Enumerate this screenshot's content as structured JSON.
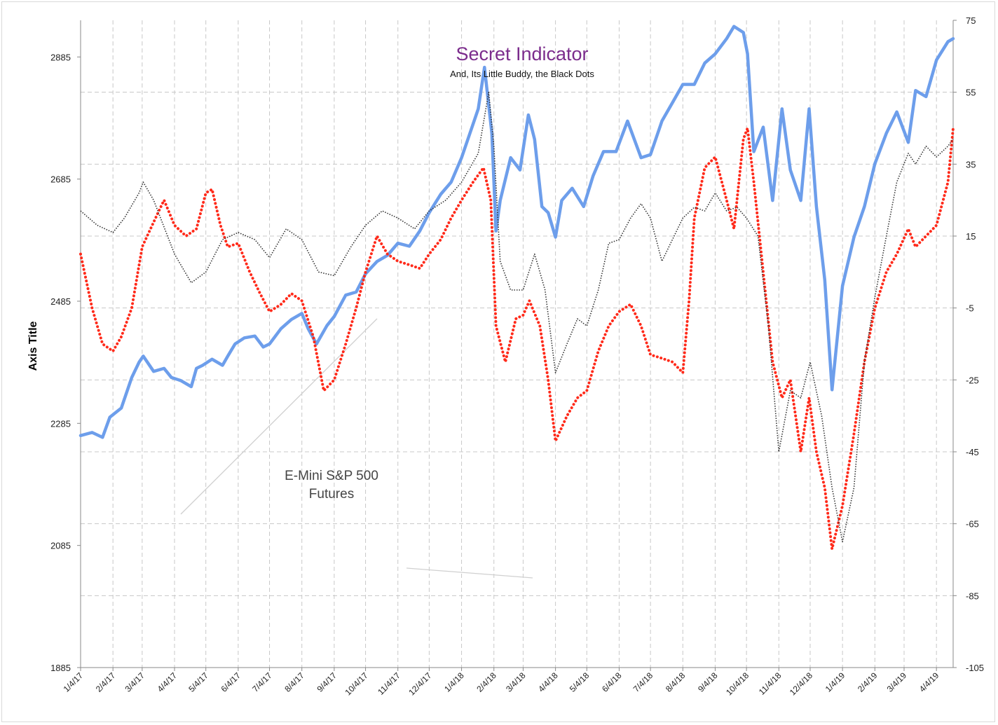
{
  "chart_data": {
    "type": "line",
    "title": "Secret Indicator",
    "subtitle": "And, Its Little Buddy, the Black Dots",
    "ylabel": "Axis Title",
    "xlabel": "",
    "annotation": {
      "line1": "E-Mini S&P 500",
      "line2": "Futures"
    },
    "x_tick_labels": [
      "1/4/17",
      "2/4/17",
      "3/4/17",
      "4/4/17",
      "5/4/17",
      "6/4/17",
      "7/4/17",
      "8/4/17",
      "9/4/17",
      "10/4/17",
      "11/4/17",
      "12/4/17",
      "1/4/18",
      "2/4/18",
      "3/4/18",
      "4/4/18",
      "5/4/18",
      "6/4/18",
      "7/4/18",
      "8/4/18",
      "9/4/18",
      "10/4/18",
      "11/4/18",
      "12/4/18",
      "1/4/19",
      "2/4/19",
      "3/4/19",
      "4/4/19"
    ],
    "x_range": [
      "1/4/17",
      "4/20/19"
    ],
    "y_left": {
      "ticks": [
        1885,
        2085,
        2285,
        2485,
        2685,
        2885
      ],
      "range": [
        1885,
        2945
      ]
    },
    "y_right": {
      "ticks": [
        -105,
        -85,
        -65,
        -45,
        -25,
        -5,
        15,
        35,
        55,
        75
      ],
      "range": [
        -105,
        75
      ]
    },
    "grid": true,
    "colors": {
      "es_futures": "#6d9eeb",
      "secret_indicator": "#ff2a1a",
      "black_dots": "#333333",
      "title": "#7b2c8c",
      "grid": "#c8c8c8"
    },
    "series": [
      {
        "axis": "left",
        "style": "solid-thick",
        "points": [
          [
            "1/4/17",
            2265
          ],
          [
            "1/15/17",
            2270
          ],
          [
            "1/25/17",
            2262
          ],
          [
            "2/1/17",
            2295
          ],
          [
            "2/12/17",
            2310
          ],
          [
            "2/22/17",
            2360
          ],
          [
            "3/1/17",
            2385
          ],
          [
            "3/5/17",
            2395
          ],
          [
            "3/15/17",
            2370
          ],
          [
            "3/25/17",
            2375
          ],
          [
            "4/1/17",
            2360
          ],
          [
            "4/10/17",
            2355
          ],
          [
            "4/20/17",
            2345
          ],
          [
            "4/25/17",
            2375
          ],
          [
            "5/1/17",
            2380
          ],
          [
            "5/10/17",
            2390
          ],
          [
            "5/20/17",
            2380
          ],
          [
            "5/25/17",
            2395
          ],
          [
            "6/1/17",
            2415
          ],
          [
            "6/10/17",
            2425
          ],
          [
            "6/20/17",
            2428
          ],
          [
            "6/28/17",
            2410
          ],
          [
            "7/4/17",
            2415
          ],
          [
            "7/15/17",
            2440
          ],
          [
            "7/25/17",
            2455
          ],
          [
            "8/4/17",
            2465
          ],
          [
            "8/10/17",
            2440
          ],
          [
            "8/18/17",
            2415
          ],
          [
            "8/28/17",
            2445
          ],
          [
            "9/4/17",
            2460
          ],
          [
            "9/15/17",
            2495
          ],
          [
            "9/25/17",
            2500
          ],
          [
            "10/4/17",
            2530
          ],
          [
            "10/15/17",
            2550
          ],
          [
            "10/25/17",
            2560
          ],
          [
            "11/4/17",
            2580
          ],
          [
            "11/15/17",
            2575
          ],
          [
            "11/25/17",
            2600
          ],
          [
            "12/4/17",
            2630
          ],
          [
            "12/15/17",
            2660
          ],
          [
            "12/25/17",
            2680
          ],
          [
            "1/4/18",
            2720
          ],
          [
            "1/12/18",
            2760
          ],
          [
            "1/20/18",
            2800
          ],
          [
            "1/26/18",
            2868
          ],
          [
            "2/2/18",
            2760
          ],
          [
            "2/6/18",
            2600
          ],
          [
            "2/10/18",
            2650
          ],
          [
            "2/20/18",
            2720
          ],
          [
            "3/1/18",
            2700
          ],
          [
            "3/9/18",
            2790
          ],
          [
            "3/15/18",
            2750
          ],
          [
            "3/22/18",
            2640
          ],
          [
            "3/28/18",
            2630
          ],
          [
            "4/4/18",
            2590
          ],
          [
            "4/10/18",
            2650
          ],
          [
            "4/20/18",
            2670
          ],
          [
            "5/1/18",
            2640
          ],
          [
            "5/10/18",
            2690
          ],
          [
            "5/20/18",
            2730
          ],
          [
            "6/1/18",
            2730
          ],
          [
            "6/12/18",
            2780
          ],
          [
            "6/25/18",
            2720
          ],
          [
            "7/4/18",
            2725
          ],
          [
            "7/15/18",
            2780
          ],
          [
            "7/25/18",
            2810
          ],
          [
            "8/4/18",
            2840
          ],
          [
            "8/15/18",
            2840
          ],
          [
            "8/25/18",
            2875
          ],
          [
            "9/4/18",
            2890
          ],
          [
            "9/15/18",
            2915
          ],
          [
            "9/22/18",
            2935
          ],
          [
            "10/1/18",
            2925
          ],
          [
            "10/5/18",
            2890
          ],
          [
            "10/11/18",
            2730
          ],
          [
            "10/20/18",
            2770
          ],
          [
            "10/29/18",
            2650
          ],
          [
            "11/7/18",
            2800
          ],
          [
            "11/15/18",
            2700
          ],
          [
            "11/25/18",
            2650
          ],
          [
            "12/3/18",
            2800
          ],
          [
            "12/10/18",
            2640
          ],
          [
            "12/18/18",
            2520
          ],
          [
            "12/25/18",
            2340
          ],
          [
            "1/4/19",
            2510
          ],
          [
            "1/15/19",
            2590
          ],
          [
            "1/25/19",
            2640
          ],
          [
            "2/4/19",
            2710
          ],
          [
            "2/15/19",
            2760
          ],
          [
            "2/25/19",
            2795
          ],
          [
            "3/8/19",
            2745
          ],
          [
            "3/15/19",
            2830
          ],
          [
            "3/25/19",
            2820
          ],
          [
            "4/4/19",
            2880
          ],
          [
            "4/15/19",
            2910
          ],
          [
            "4/20/19",
            2915
          ]
        ]
      },
      {
        "axis": "right",
        "style": "dots-red",
        "points": [
          [
            "1/4/17",
            10
          ],
          [
            "1/15/17",
            -5
          ],
          [
            "1/25/17",
            -15
          ],
          [
            "2/4/17",
            -17
          ],
          [
            "2/12/17",
            -13
          ],
          [
            "2/22/17",
            -5
          ],
          [
            "3/4/17",
            12
          ],
          [
            "3/12/17",
            17
          ],
          [
            "3/20/17",
            22
          ],
          [
            "3/25/17",
            25
          ],
          [
            "4/4/17",
            18
          ],
          [
            "4/15/17",
            15
          ],
          [
            "4/25/17",
            17
          ],
          [
            "5/4/17",
            27
          ],
          [
            "5/10/17",
            28
          ],
          [
            "5/18/17",
            18
          ],
          [
            "5/25/17",
            12
          ],
          [
            "6/4/17",
            13
          ],
          [
            "6/15/17",
            5
          ],
          [
            "6/25/17",
            -1
          ],
          [
            "7/4/17",
            -6
          ],
          [
            "7/15/17",
            -4
          ],
          [
            "7/25/17",
            -1
          ],
          [
            "8/4/17",
            -3
          ],
          [
            "8/15/17",
            -13
          ],
          [
            "8/25/17",
            -28
          ],
          [
            "9/4/17",
            -25
          ],
          [
            "9/15/17",
            -15
          ],
          [
            "9/25/17",
            -5
          ],
          [
            "10/4/17",
            5
          ],
          [
            "10/15/17",
            15
          ],
          [
            "10/25/17",
            10
          ],
          [
            "11/4/17",
            8
          ],
          [
            "11/15/17",
            7
          ],
          [
            "11/25/17",
            6
          ],
          [
            "12/4/17",
            10
          ],
          [
            "12/15/17",
            14
          ],
          [
            "12/25/17",
            20
          ],
          [
            "1/4/18",
            25
          ],
          [
            "1/15/18",
            30
          ],
          [
            "1/25/18",
            34
          ],
          [
            "2/1/18",
            25
          ],
          [
            "2/6/18",
            -10
          ],
          [
            "2/15/18",
            -20
          ],
          [
            "2/25/18",
            -8
          ],
          [
            "3/4/18",
            -7
          ],
          [
            "3/10/18",
            -3
          ],
          [
            "3/20/18",
            -10
          ],
          [
            "3/28/18",
            -25
          ],
          [
            "4/4/18",
            -42
          ],
          [
            "4/15/18",
            -35
          ],
          [
            "4/25/18",
            -30
          ],
          [
            "5/4/18",
            -28
          ],
          [
            "5/15/18",
            -17
          ],
          [
            "5/25/18",
            -10
          ],
          [
            "6/4/18",
            -6
          ],
          [
            "6/15/18",
            -4
          ],
          [
            "6/25/18",
            -10
          ],
          [
            "7/4/18",
            -18
          ],
          [
            "7/15/18",
            -19
          ],
          [
            "7/25/18",
            -20
          ],
          [
            "8/4/18",
            -23
          ],
          [
            "8/10/18",
            -3
          ],
          [
            "8/15/18",
            20
          ],
          [
            "8/25/18",
            34
          ],
          [
            "9/4/18",
            37
          ],
          [
            "9/15/18",
            25
          ],
          [
            "9/22/18",
            17
          ],
          [
            "10/1/18",
            42
          ],
          [
            "10/5/18",
            45
          ],
          [
            "10/11/18",
            30
          ],
          [
            "10/20/18",
            5
          ],
          [
            "10/29/18",
            -20
          ],
          [
            "11/7/18",
            -30
          ],
          [
            "11/15/18",
            -25
          ],
          [
            "11/25/18",
            -45
          ],
          [
            "12/3/18",
            -30
          ],
          [
            "12/10/18",
            -45
          ],
          [
            "12/18/18",
            -55
          ],
          [
            "12/25/18",
            -72
          ],
          [
            "1/4/19",
            -60
          ],
          [
            "1/15/19",
            -40
          ],
          [
            "1/25/19",
            -20
          ],
          [
            "2/4/19",
            -5
          ],
          [
            "2/15/19",
            5
          ],
          [
            "2/25/19",
            10
          ],
          [
            "3/8/19",
            17
          ],
          [
            "3/15/19",
            12
          ],
          [
            "3/25/19",
            15
          ],
          [
            "4/4/19",
            18
          ],
          [
            "4/15/19",
            30
          ],
          [
            "4/20/19",
            45
          ]
        ]
      },
      {
        "axis": "right",
        "style": "dotted-black",
        "points": [
          [
            "1/4/17",
            22
          ],
          [
            "1/20/17",
            18
          ],
          [
            "2/4/17",
            16
          ],
          [
            "2/15/17",
            20
          ],
          [
            "3/1/17",
            27
          ],
          [
            "3/5/17",
            30
          ],
          [
            "3/15/17",
            25
          ],
          [
            "4/4/17",
            10
          ],
          [
            "4/20/17",
            2
          ],
          [
            "5/4/17",
            5
          ],
          [
            "5/20/17",
            14
          ],
          [
            "6/4/17",
            16
          ],
          [
            "6/20/17",
            14
          ],
          [
            "7/4/17",
            9
          ],
          [
            "7/20/17",
            17
          ],
          [
            "8/4/17",
            14
          ],
          [
            "8/20/17",
            5
          ],
          [
            "9/4/17",
            4
          ],
          [
            "9/20/17",
            12
          ],
          [
            "10/4/17",
            18
          ],
          [
            "10/20/17",
            22
          ],
          [
            "11/4/17",
            20
          ],
          [
            "11/20/17",
            17
          ],
          [
            "12/4/17",
            22
          ],
          [
            "12/20/17",
            25
          ],
          [
            "1/4/18",
            30
          ],
          [
            "1/20/18",
            38
          ],
          [
            "1/30/18",
            55
          ],
          [
            "2/4/18",
            40
          ],
          [
            "2/10/18",
            8
          ],
          [
            "2/20/18",
            0
          ],
          [
            "3/4/18",
            0
          ],
          [
            "3/15/18",
            10
          ],
          [
            "3/25/18",
            0
          ],
          [
            "4/4/18",
            -23
          ],
          [
            "4/15/18",
            -15
          ],
          [
            "4/25/18",
            -8
          ],
          [
            "5/4/18",
            -10
          ],
          [
            "5/15/18",
            0
          ],
          [
            "5/25/18",
            13
          ],
          [
            "6/4/18",
            14
          ],
          [
            "6/15/18",
            20
          ],
          [
            "6/25/18",
            24
          ],
          [
            "7/4/18",
            20
          ],
          [
            "7/15/18",
            8
          ],
          [
            "7/25/18",
            14
          ],
          [
            "8/4/18",
            20
          ],
          [
            "8/15/18",
            23
          ],
          [
            "8/25/18",
            22
          ],
          [
            "9/4/18",
            27
          ],
          [
            "9/15/18",
            22
          ],
          [
            "9/25/18",
            23
          ],
          [
            "10/4/18",
            20
          ],
          [
            "10/15/18",
            15
          ],
          [
            "10/25/18",
            -10
          ],
          [
            "11/4/18",
            -45
          ],
          [
            "11/15/18",
            -28
          ],
          [
            "11/25/18",
            -30
          ],
          [
            "12/4/18",
            -20
          ],
          [
            "12/15/18",
            -35
          ],
          [
            "12/25/18",
            -55
          ],
          [
            "1/4/19",
            -70
          ],
          [
            "1/15/19",
            -55
          ],
          [
            "1/25/19",
            -20
          ],
          [
            "2/4/19",
            -2
          ],
          [
            "2/15/19",
            15
          ],
          [
            "2/25/19",
            30
          ],
          [
            "3/8/19",
            38
          ],
          [
            "3/15/19",
            35
          ],
          [
            "3/25/19",
            40
          ],
          [
            "4/4/19",
            37
          ],
          [
            "4/15/19",
            40
          ],
          [
            "4/20/19",
            42
          ]
        ]
      }
    ]
  }
}
